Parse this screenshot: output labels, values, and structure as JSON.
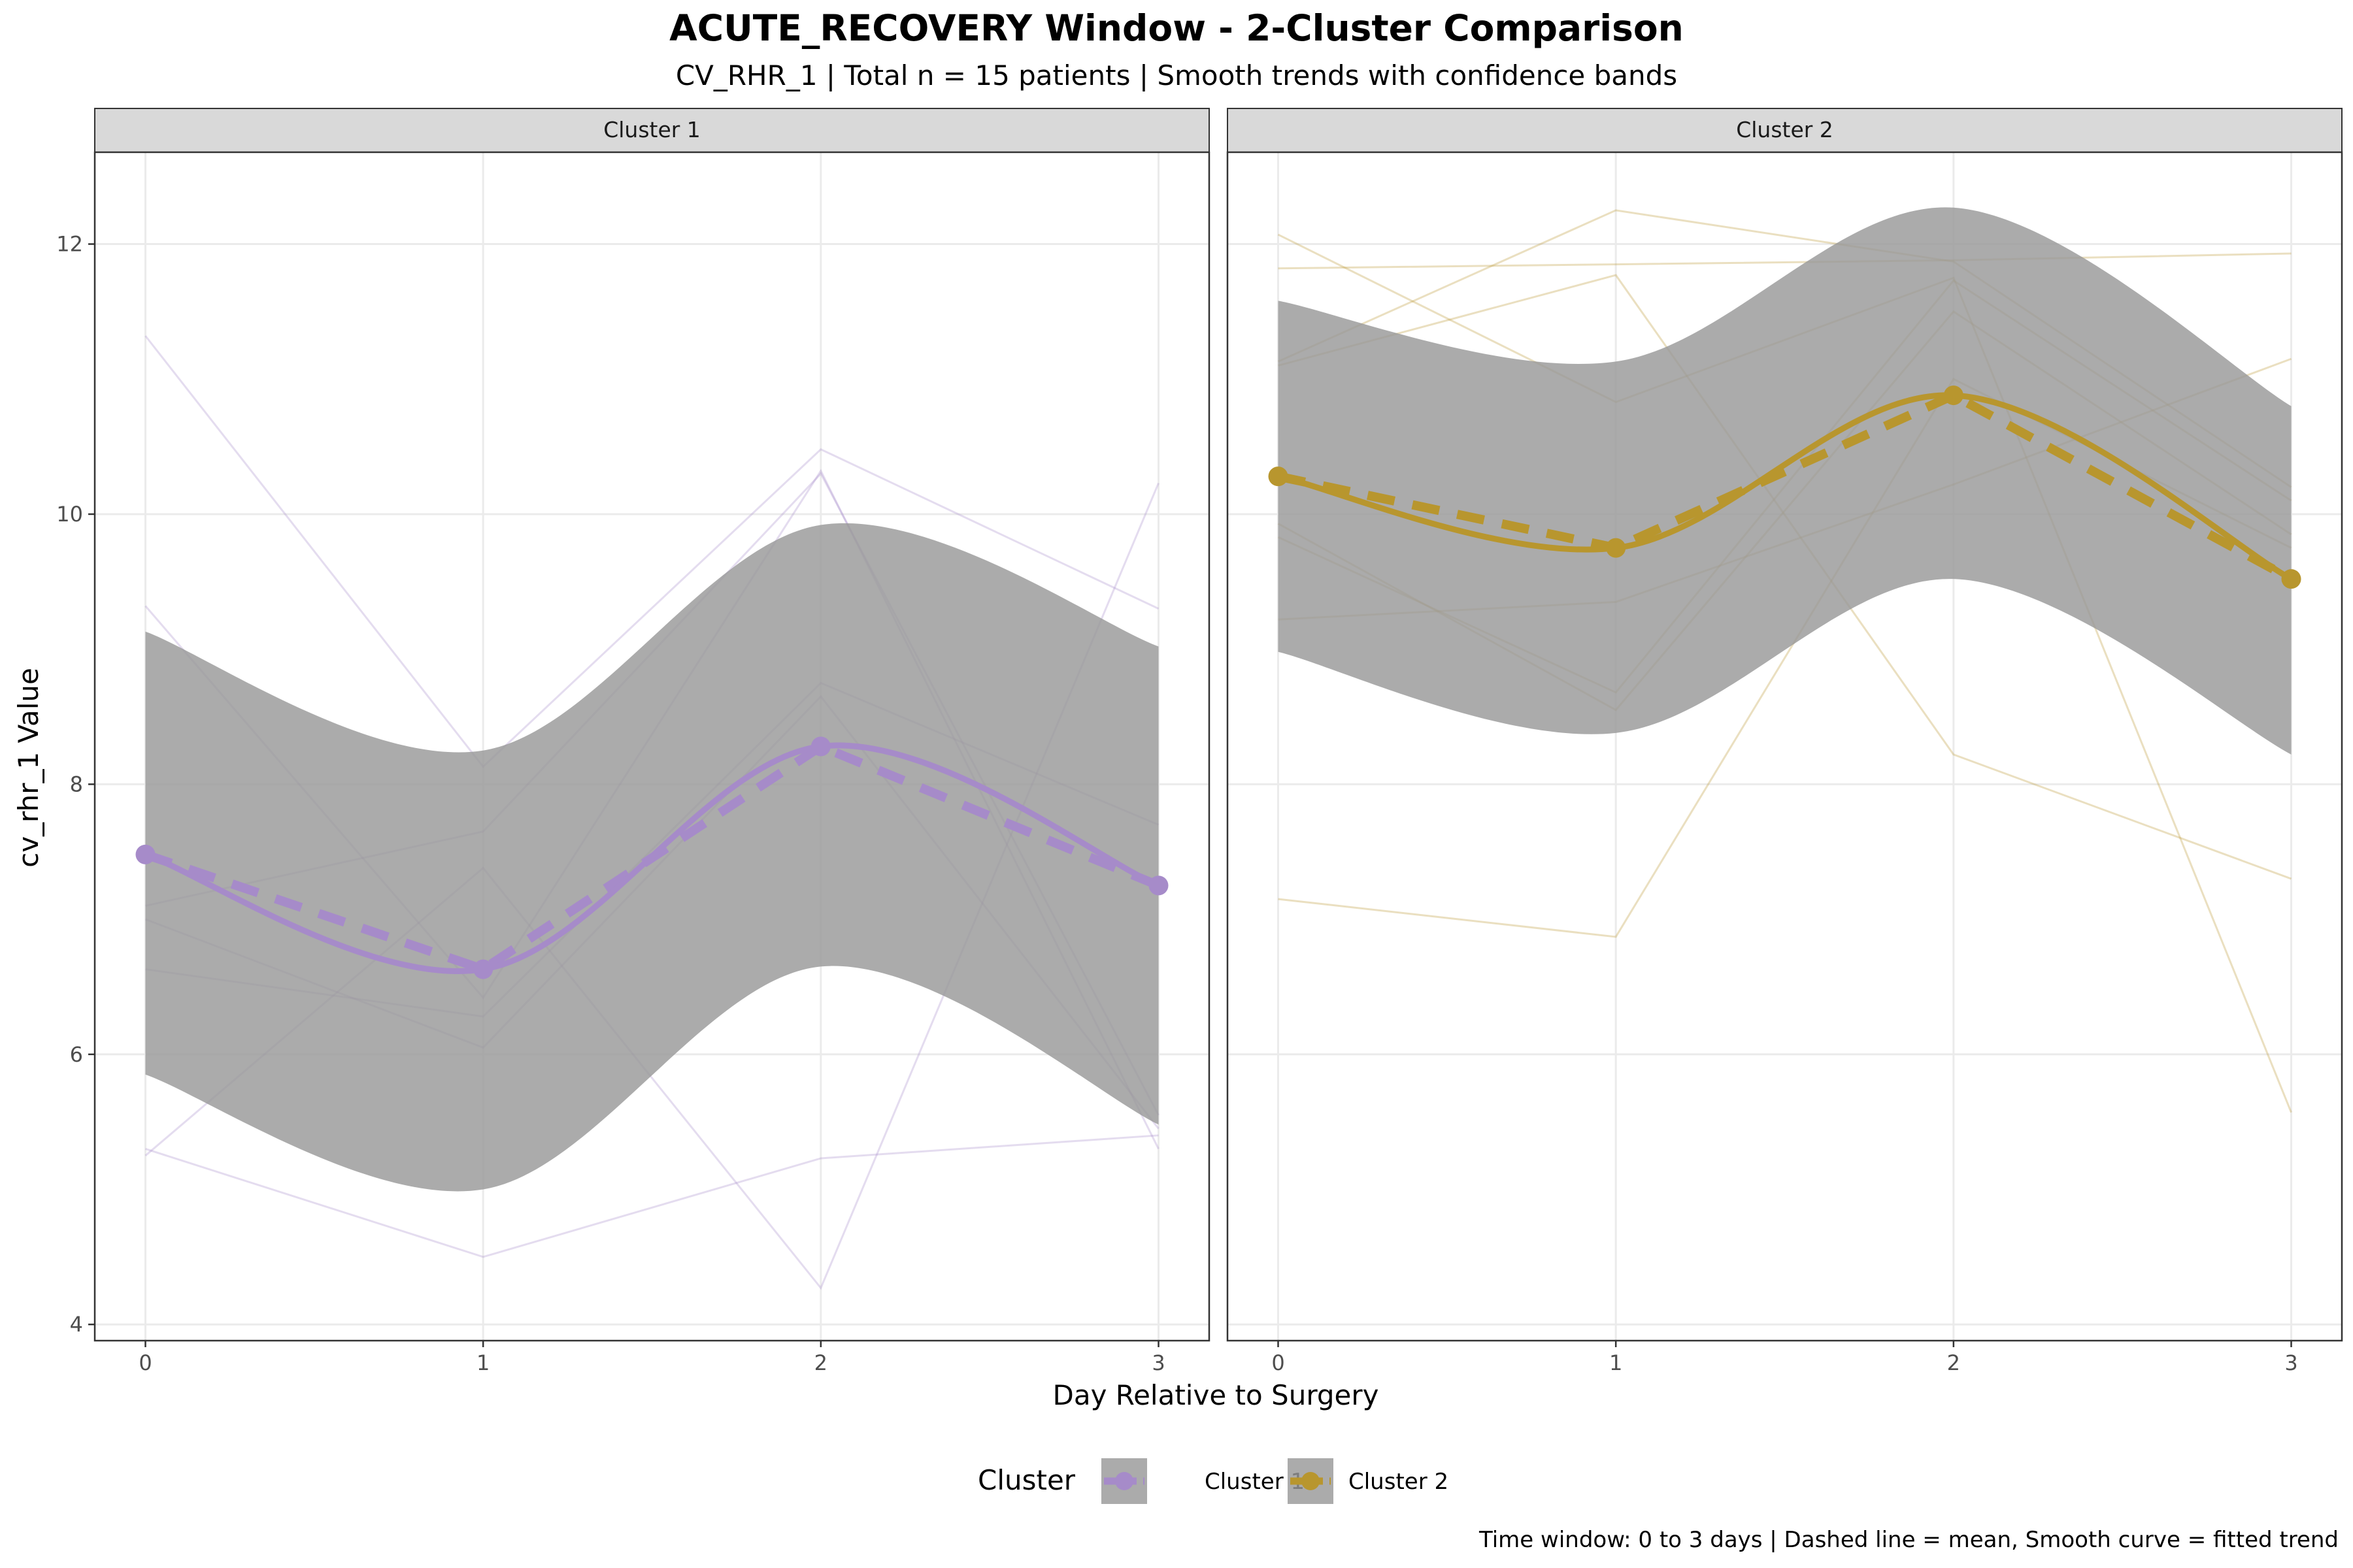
{
  "chart_data": {
    "type": "line",
    "title": "ACUTE_RECOVERY Window - 2-Cluster Comparison",
    "subtitle": "CV_RHR_1 | Total n = 15 patients | Smooth trends with confidence bands",
    "xlabel": "Day Relative to Surgery",
    "ylabel": "cv_rhr_1 Value",
    "caption": "Time window: 0 to 3 days | Dashed line = mean, Smooth curve = fitted trend",
    "x": [
      0,
      1,
      2,
      3
    ],
    "x_ticks": [
      "0",
      "1",
      "2",
      "3"
    ],
    "y_ticks": [
      "4",
      "6",
      "8",
      "10",
      "12"
    ],
    "xlim": [
      -0.15,
      3.15
    ],
    "ylim": [
      3.88,
      12.68
    ],
    "grid": true,
    "legend": {
      "title": "Cluster",
      "position": "bottom",
      "entries": [
        "Cluster 1",
        "Cluster 2"
      ]
    },
    "panels": [
      {
        "label": "Cluster 1",
        "color": "#A68BC9",
        "mean": [
          7.48,
          6.63,
          8.28,
          7.25
        ],
        "smooth": [
          7.48,
          6.63,
          8.28,
          7.25
        ],
        "band_upper": [
          9.13,
          8.25,
          9.92,
          9.02
        ],
        "band_lower": [
          5.85,
          5.0,
          6.65,
          5.48
        ],
        "patients": [
          [
            11.32,
            8.13,
            10.48,
            9.3
          ],
          [
            9.32,
            6.42,
            10.32,
            5.3
          ],
          [
            7.1,
            7.65,
            10.3,
            5.55
          ],
          [
            6.63,
            6.28,
            8.75,
            7.7
          ],
          [
            5.3,
            4.5,
            5.23,
            5.4
          ],
          [
            5.25,
            7.38,
            4.27,
            10.23
          ],
          [
            7.0,
            6.05,
            8.65,
            5.45
          ]
        ]
      },
      {
        "label": "Cluster 2",
        "color": "#B8962E",
        "mean": [
          10.28,
          9.75,
          10.88,
          9.52
        ],
        "smooth": [
          10.28,
          9.75,
          10.88,
          9.52
        ],
        "band_upper": [
          11.58,
          11.13,
          12.27,
          10.8
        ],
        "band_lower": [
          8.98,
          8.38,
          9.52,
          8.22
        ],
        "patients": [
          [
            11.82,
            11.85,
            11.88,
            11.93
          ],
          [
            12.07,
            10.83,
            11.75,
            5.57
          ],
          [
            11.13,
            12.25,
            11.87,
            10.2
          ],
          [
            11.1,
            11.77,
            8.22,
            7.3
          ],
          [
            9.93,
            8.55,
            11.5,
            9.85
          ],
          [
            9.83,
            8.68,
            11.73,
            10.1
          ],
          [
            9.22,
            9.35,
            10.22,
            11.15
          ],
          [
            7.15,
            6.87,
            11.0,
            9.75
          ]
        ]
      }
    ]
  }
}
